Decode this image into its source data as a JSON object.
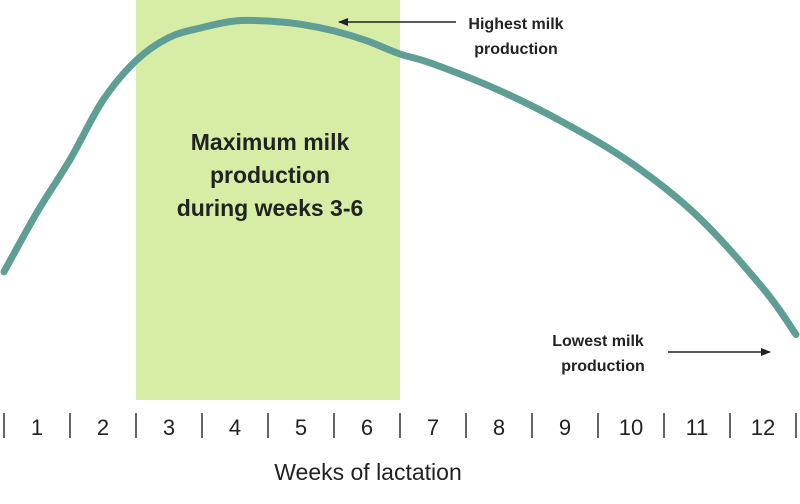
{
  "colors": {
    "curve": "#5f9e95",
    "highlight": "#d7eda5",
    "text": "#222222",
    "tick": "#333333"
  },
  "chart_data": {
    "type": "line",
    "xlabel": "Weeks of lactation",
    "ylabel": "",
    "categories": [
      "1",
      "2",
      "3",
      "4",
      "5",
      "6",
      "7",
      "8",
      "9",
      "10",
      "11",
      "12"
    ],
    "x": [
      0.5,
      1.0,
      1.5,
      2.0,
      2.5,
      3.0,
      3.5,
      4.0,
      4.5,
      5.0,
      5.5,
      6.0,
      6.5,
      7.0,
      8.0,
      9.0,
      10.0,
      11.0,
      12.0,
      12.5
    ],
    "series": [
      {
        "values": [
          0.24,
          0.42,
          0.58,
          0.76,
          0.88,
          0.95,
          0.98,
          1.0,
          1.0,
          0.99,
          0.97,
          0.94,
          0.9,
          0.87,
          0.79,
          0.69,
          0.57,
          0.41,
          0.19,
          0.05
        ]
      }
    ],
    "xlim": [
      0.5,
      12.5
    ],
    "ylim": [
      0,
      1
    ],
    "highlight_band": {
      "from_week": 3,
      "to_week": 6,
      "label_lines": [
        "Maximum milk",
        "production",
        "during weeks 3-6"
      ]
    },
    "annotations": [
      {
        "id": "highest",
        "lines": [
          "Highest milk",
          "production"
        ],
        "points_to_week": 5.5
      },
      {
        "id": "lowest",
        "lines": [
          "Lowest milk",
          "production"
        ],
        "points_to_week": 12.5
      }
    ]
  }
}
